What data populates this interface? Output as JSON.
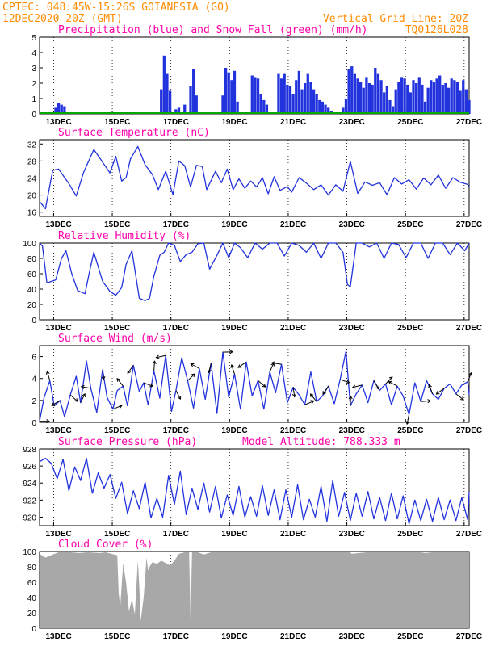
{
  "header": {
    "line1_left": "CPTEC:  048:45W-15:26S  GOIANESIA (GO)",
    "line2_left": "12DEC2020 20Z (GMT)",
    "line2_right": "Vertical Grid Line: 20Z",
    "line3_right": "TQ0126L028"
  },
  "colors": {
    "header": "#ff8c00",
    "title": "#ff00aa",
    "line": "#2233dd",
    "snow": "#00aa00",
    "cloud": "#a8a8a8"
  },
  "x_ticks": [
    "13DEC",
    "15DEC",
    "17DEC",
    "19DEC",
    "21DEC",
    "23DEC",
    "25DEC",
    "27DEC"
  ],
  "panels": {
    "precip": {
      "title": "Precipitation (blue) and Snow Fall (green) (mm/h)",
      "yticks": [
        "5",
        "4",
        "3",
        "2",
        "1",
        "0"
      ]
    },
    "temp": {
      "title": "Surface Temperature (nC)",
      "yticks": [
        "32",
        "28",
        "24",
        "20",
        "16"
      ]
    },
    "rh": {
      "title": "Relative Humidity (%)",
      "yticks": [
        "100",
        "80",
        "60",
        "40",
        "20",
        "0"
      ]
    },
    "wind": {
      "title": "Surface Wind (m/s)",
      "yticks": [
        "6",
        "4",
        "2",
        "0"
      ]
    },
    "pres": {
      "title": "Surface Pressure (hPa)",
      "subtitle": "Model Altitude: 788.333 m",
      "yticks": [
        "928",
        "926",
        "924",
        "922",
        "920"
      ]
    },
    "cloud": {
      "title": "Cloud Cover (%)",
      "yticks": [
        "100",
        "80",
        "60",
        "40",
        "20",
        "0"
      ]
    }
  },
  "chart_data": [
    {
      "type": "bar",
      "title": "Precipitation (blue) and Snow Fall (green) (mm/h)",
      "ylim": [
        0,
        5
      ],
      "series": [
        {
          "name": "Precipitation",
          "x_day": [
            12.9,
            13.0,
            13.1,
            13.2,
            16.5,
            16.6,
            16.7,
            16.8,
            17.0,
            17.1,
            17.3,
            17.5,
            17.6,
            17.7,
            18.6,
            18.7,
            18.8,
            18.9,
            19.0,
            19.1,
            19.6,
            19.7,
            19.8,
            19.9,
            20.0,
            20.1,
            20.5,
            20.6,
            20.7,
            20.8,
            20.9,
            21.0,
            21.1,
            21.2,
            21.3,
            21.4,
            21.5,
            21.6,
            21.7,
            21.8,
            21.9,
            22.0,
            22.1,
            22.2,
            22.3,
            22.4,
            22.5,
            22.6,
            22.7,
            22.8,
            22.9,
            23.0,
            23.1,
            23.2,
            23.3,
            23.4,
            23.5,
            23.6,
            23.7,
            23.8,
            23.9,
            24.0,
            24.1,
            24.2,
            24.3,
            24.4,
            24.5,
            24.6,
            24.7,
            24.8,
            24.9,
            25.0,
            25.1,
            25.2,
            25.3,
            25.4,
            25.5,
            25.6,
            25.7,
            25.8,
            25.9,
            26.0,
            26.1,
            26.2,
            26.3,
            26.4,
            26.5,
            26.6,
            26.7,
            26.8,
            26.9,
            27.0
          ],
          "values": [
            0.4,
            0.7,
            0.6,
            0.5,
            1.6,
            3.8,
            2.6,
            1.5,
            0.3,
            0.4,
            0.6,
            1.8,
            2.9,
            1.2,
            1.2,
            3.0,
            2.7,
            2.2,
            2.8,
            0.8,
            2.5,
            2.4,
            2.3,
            1.3,
            0.9,
            0.6,
            2.6,
            2.3,
            2.6,
            1.9,
            1.8,
            1.3,
            2.2,
            2.8,
            1.6,
            2.0,
            2.6,
            2.1,
            1.6,
            1.3,
            0.9,
            0.8,
            0.6,
            0.4,
            0.2,
            0.1,
            0.05,
            0.1,
            0.4,
            1.0,
            2.9,
            3.1,
            2.6,
            2.3,
            2.1,
            1.7,
            2.4,
            2.0,
            1.9,
            3.0,
            2.6,
            2.2,
            1.4,
            1.8,
            0.9,
            0.5,
            1.6,
            2.1,
            2.4,
            2.3,
            1.9,
            1.4,
            2.2,
            2.0,
            2.4,
            1.9,
            0.8,
            1.7,
            2.2,
            2.1,
            2.3,
            2.5,
            1.9,
            2.0,
            1.7,
            2.3,
            2.2,
            2.1,
            1.5,
            2.2,
            1.6,
            0.9
          ]
        },
        {
          "name": "Snow Fall",
          "values": [
            0
          ]
        }
      ]
    },
    {
      "type": "line",
      "title": "Surface Temperature (nC)",
      "ylim": [
        15,
        33
      ],
      "x_day": [
        12.35,
        12.55,
        12.8,
        13.0,
        13.35,
        13.6,
        13.85,
        14.2,
        14.45,
        14.75,
        14.95,
        15.15,
        15.3,
        15.45,
        15.7,
        15.95,
        16.2,
        16.4,
        16.65,
        16.9,
        17.1,
        17.3,
        17.5,
        17.7,
        17.9,
        18.05,
        18.35,
        18.55,
        18.75,
        18.95,
        19.15,
        19.35,
        19.55,
        19.75,
        19.95,
        20.15,
        20.35,
        20.55,
        20.8,
        20.95,
        21.2,
        21.45,
        21.7,
        21.95,
        22.2,
        22.45,
        22.7,
        22.95,
        23.2,
        23.45,
        23.7,
        23.95,
        24.2,
        24.45,
        24.7,
        24.95,
        25.2,
        25.45,
        25.7,
        25.95,
        26.2,
        26.45,
        26.7,
        26.95,
        27.0
      ],
      "y": [
        18.5,
        16.8,
        25.8,
        26.1,
        22.7,
        19.8,
        25.3,
        30.7,
        28.2,
        25.2,
        29.1,
        23.3,
        24.1,
        28.5,
        31.4,
        27.1,
        24.8,
        21.3,
        25.6,
        20.1,
        28.0,
        26.9,
        21.9,
        27.0,
        26.7,
        21.3,
        25.6,
        22.9,
        26.1,
        21.3,
        23.8,
        21.6,
        23.3,
        21.9,
        24.1,
        20.3,
        24.3,
        21.1,
        22.0,
        20.7,
        24.1,
        22.8,
        21.3,
        22.4,
        20.0,
        22.4,
        20.9,
        27.9,
        20.4,
        23.1,
        22.3,
        22.9,
        20.1,
        24.1,
        22.6,
        23.6,
        21.4,
        24.0,
        22.4,
        24.7,
        21.6,
        24.1,
        23.0,
        22.5,
        21.9
      ]
    },
    {
      "type": "line",
      "title": "Relative Humidity (%)",
      "ylim": [
        0,
        100
      ],
      "x_day": [
        12.35,
        12.45,
        12.6,
        12.9,
        13.1,
        13.25,
        13.45,
        13.65,
        13.9,
        14.05,
        14.2,
        14.5,
        14.75,
        14.95,
        15.15,
        15.3,
        15.5,
        15.75,
        15.95,
        16.1,
        16.25,
        16.45,
        16.6,
        16.75,
        16.95,
        17.15,
        17.35,
        17.55,
        17.75,
        17.95,
        18.15,
        18.4,
        18.6,
        18.8,
        19.0,
        19.2,
        19.45,
        19.7,
        19.95,
        20.2,
        20.45,
        20.7,
        20.95,
        21.2,
        21.45,
        21.7,
        21.95,
        22.2,
        22.45,
        22.7,
        22.85,
        22.95,
        23.15,
        23.35,
        23.6,
        23.85,
        24.1,
        24.35,
        24.6,
        24.85,
        25.1,
        25.35,
        25.6,
        25.85,
        26.1,
        26.35,
        26.6,
        26.85,
        27.0
      ],
      "y": [
        100,
        96,
        48,
        52,
        80,
        90,
        60,
        38,
        34,
        62,
        88,
        50,
        37,
        32,
        42,
        72,
        90,
        28,
        25,
        28,
        57,
        84,
        88,
        100,
        97,
        76,
        85,
        88,
        99,
        100,
        66,
        84,
        100,
        81,
        100,
        94,
        81,
        100,
        92,
        100,
        100,
        83,
        100,
        97,
        88,
        100,
        80,
        100,
        100,
        88,
        46,
        43,
        100,
        100,
        95,
        100,
        80,
        100,
        98,
        81,
        100,
        100,
        80,
        100,
        100,
        85,
        100,
        90,
        100
      ]
    },
    {
      "type": "line",
      "title": "Surface Wind (m/s)",
      "ylim": [
        0,
        7
      ],
      "x_day": [
        12.35,
        12.5,
        12.7,
        12.85,
        13.05,
        13.2,
        13.4,
        13.6,
        13.75,
        13.95,
        14.1,
        14.3,
        14.5,
        14.65,
        14.85,
        15.0,
        15.2,
        15.35,
        15.55,
        15.75,
        15.9,
        16.05,
        16.25,
        16.45,
        16.65,
        16.85,
        17.0,
        17.2,
        17.4,
        17.6,
        17.8,
        18.0,
        18.2,
        18.4,
        18.6,
        18.8,
        19.0,
        19.2,
        19.4,
        19.6,
        19.8,
        20.0,
        20.2,
        20.4,
        20.6,
        20.8,
        21.0,
        21.2,
        21.4,
        21.6,
        21.8,
        22.0,
        22.2,
        22.4,
        22.6,
        22.8,
        22.95,
        23.15,
        23.35,
        23.55,
        23.75,
        23.95,
        24.15,
        24.35,
        24.55,
        24.75,
        24.95,
        25.15,
        25.35,
        25.55,
        25.75,
        25.95,
        26.15,
        26.35,
        26.55,
        26.75,
        26.95,
        27.0
      ],
      "y": [
        0.1,
        2.2,
        3.8,
        1.5,
        2.0,
        0.5,
        2.5,
        4.2,
        1.8,
        5.6,
        3.1,
        0.9,
        4.8,
        2.3,
        1.2,
        2.9,
        3.3,
        1.5,
        5.2,
        2.8,
        3.6,
        1.6,
        4.7,
        2.2,
        6.1,
        1.0,
        2.9,
        5.9,
        3.8,
        1.3,
        4.9,
        2.1,
        5.4,
        0.8,
        6.4,
        2.3,
        4.4,
        1.2,
        5.5,
        2.4,
        3.8,
        1.2,
        4.6,
        2.7,
        5.3,
        1.8,
        3.2,
        2.5,
        1.6,
        4.6,
        1.9,
        2.4,
        3.3,
        1.7,
        3.9,
        6.5,
        1.5,
        2.6,
        3.4,
        1.8,
        3.8,
        2.9,
        3.5,
        1.6,
        3.3,
        2.4,
        0.7,
        3.6,
        1.9,
        3.8,
        2.6,
        2.1,
        3.1,
        3.5,
        2.6,
        3.4,
        3.7,
        2.5
      ]
    },
    {
      "type": "line",
      "title": "Surface Pressure (hPa)",
      "ylim": [
        919,
        928
      ],
      "x_day": [
        12.35,
        12.55,
        12.75,
        12.95,
        13.15,
        13.35,
        13.55,
        13.75,
        13.95,
        14.15,
        14.35,
        14.55,
        14.75,
        14.95,
        15.15,
        15.35,
        15.55,
        15.75,
        15.95,
        16.15,
        16.35,
        16.55,
        16.75,
        16.95,
        17.15,
        17.35,
        17.55,
        17.75,
        17.95,
        18.15,
        18.35,
        18.55,
        18.75,
        18.95,
        19.15,
        19.35,
        19.55,
        19.75,
        19.95,
        20.15,
        20.35,
        20.55,
        20.75,
        20.95,
        21.15,
        21.35,
        21.55,
        21.75,
        21.95,
        22.15,
        22.35,
        22.55,
        22.75,
        22.95,
        23.15,
        23.35,
        23.55,
        23.75,
        23.95,
        24.15,
        24.35,
        24.55,
        24.75,
        24.95,
        25.15,
        25.35,
        25.55,
        25.75,
        25.95,
        26.15,
        26.35,
        26.55,
        26.75,
        26.95,
        27.0
      ],
      "y": [
        926.5,
        926.9,
        926.3,
        924.5,
        926.8,
        923.1,
        925.9,
        924.3,
        926.9,
        922.8,
        925.2,
        923.4,
        925.0,
        922.2,
        924.1,
        920.4,
        923.1,
        921.0,
        924.1,
        919.9,
        922.2,
        920.0,
        924.9,
        921.5,
        925.4,
        920.3,
        923.4,
        920.9,
        924.0,
        920.6,
        923.6,
        919.9,
        922.6,
        920.2,
        923.6,
        920.0,
        922.4,
        920.1,
        923.7,
        920.2,
        923.2,
        919.7,
        923.2,
        920.0,
        923.8,
        919.7,
        922.1,
        920.0,
        923.6,
        919.5,
        924.3,
        920.1,
        922.9,
        919.6,
        922.8,
        920.1,
        923.0,
        919.8,
        922.3,
        919.6,
        922.8,
        919.8,
        922.5,
        919.2,
        922.0,
        919.6,
        922.1,
        919.5,
        922.3,
        919.7,
        922.0,
        919.6,
        922.3,
        919.7,
        923.0
      ]
    },
    {
      "type": "area",
      "title": "Cloud Cover (%)",
      "ylim": [
        0,
        100
      ],
      "x_day": [
        12.35,
        12.55,
        12.8,
        13.0,
        13.4,
        13.7,
        14.0,
        14.4,
        14.6,
        14.8,
        15.0,
        15.05,
        15.1,
        15.2,
        15.3,
        15.4,
        15.5,
        15.6,
        15.7,
        15.75,
        15.8,
        15.9,
        16.0,
        16.05,
        16.1,
        16.2,
        16.35,
        16.5,
        16.65,
        16.8,
        16.95,
        17.1,
        17.3,
        17.45,
        17.5,
        17.55,
        17.75,
        17.95,
        18.2,
        18.4,
        19.0,
        20.0,
        21.0,
        22.0,
        22.9,
        23.0,
        23.5,
        24.0,
        24.8,
        25.2,
        25.5,
        26.0,
        26.5,
        27.0
      ],
      "y": [
        97,
        92,
        96,
        99,
        99,
        98,
        99,
        98,
        99,
        97,
        95,
        45,
        28,
        85,
        60,
        22,
        38,
        18,
        88,
        55,
        10,
        40,
        92,
        75,
        80,
        86,
        84,
        88,
        85,
        82,
        88,
        97,
        99,
        99,
        10,
        99,
        99,
        96,
        99,
        100,
        100,
        100,
        100,
        100,
        100,
        97,
        99,
        100,
        100,
        100,
        98,
        100,
        100,
        100
      ]
    }
  ]
}
